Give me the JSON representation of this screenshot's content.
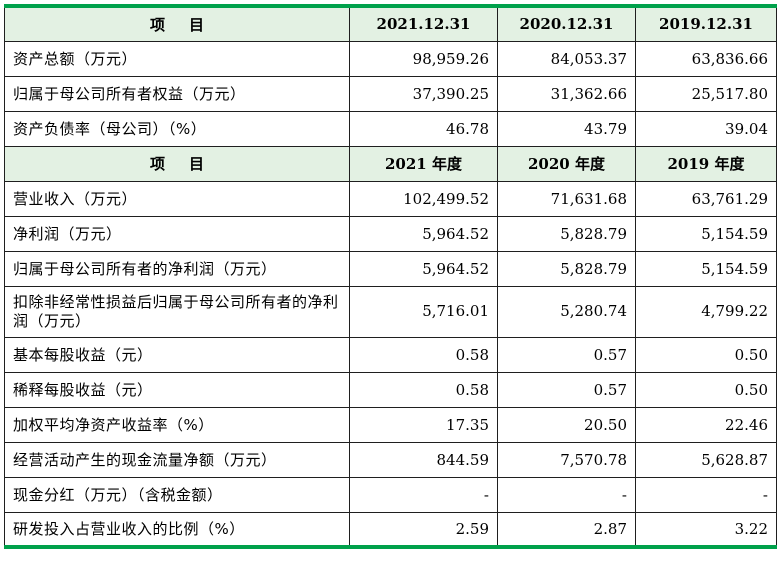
{
  "header1": {
    "item_label_a": "项",
    "item_label_b": "目",
    "years": [
      "2021.12.31",
      "2020.12.31",
      "2019.12.31"
    ]
  },
  "section1_rows": [
    {
      "label": "资产总额（万元）",
      "values": [
        "98,959.26",
        "84,053.37",
        "63,836.66"
      ]
    },
    {
      "label": "归属于母公司所有者权益（万元）",
      "values": [
        "37,390.25",
        "31,362.66",
        "25,517.80"
      ]
    },
    {
      "label": "资产负债率（母公司）（%）",
      "values": [
        "46.78",
        "43.79",
        "39.04"
      ]
    }
  ],
  "header2": {
    "item_label_a": "项",
    "item_label_b": "目",
    "years": [
      "2021 年度",
      "2020 年度",
      "2019 年度"
    ]
  },
  "section2_rows": [
    {
      "label": "营业收入（万元）",
      "values": [
        "102,499.52",
        "71,631.68",
        "63,761.29"
      ]
    },
    {
      "label": "净利润（万元）",
      "values": [
        "5,964.52",
        "5,828.79",
        "5,154.59"
      ]
    },
    {
      "label": "归属于母公司所有者的净利润（万元）",
      "values": [
        "5,964.52",
        "5,828.79",
        "5,154.59"
      ]
    },
    {
      "label": "扣除非经常性损益后归属于母公司所有者的净利润（万元）",
      "values": [
        "5,716.01",
        "5,280.74",
        "4,799.22"
      ]
    },
    {
      "label": "基本每股收益（元）",
      "values": [
        "0.58",
        "0.57",
        "0.50"
      ]
    },
    {
      "label": "稀释每股收益（元）",
      "values": [
        "0.58",
        "0.57",
        "0.50"
      ]
    },
    {
      "label": "加权平均净资产收益率（%）",
      "values": [
        "17.35",
        "20.50",
        "22.46"
      ]
    },
    {
      "label": "经营活动产生的现金流量净额（万元）",
      "values": [
        "844.59",
        "7,570.78",
        "5,628.87"
      ]
    },
    {
      "label": "现金分红（万元）（含税金额）",
      "values": [
        "-",
        "-",
        "-"
      ]
    },
    {
      "label": "研发投入占营业收入的比例（%）",
      "values": [
        "2.59",
        "2.87",
        "3.22"
      ]
    }
  ],
  "colors": {
    "accent_border": "#00a14b",
    "header_fill": "#e3f1e3"
  }
}
